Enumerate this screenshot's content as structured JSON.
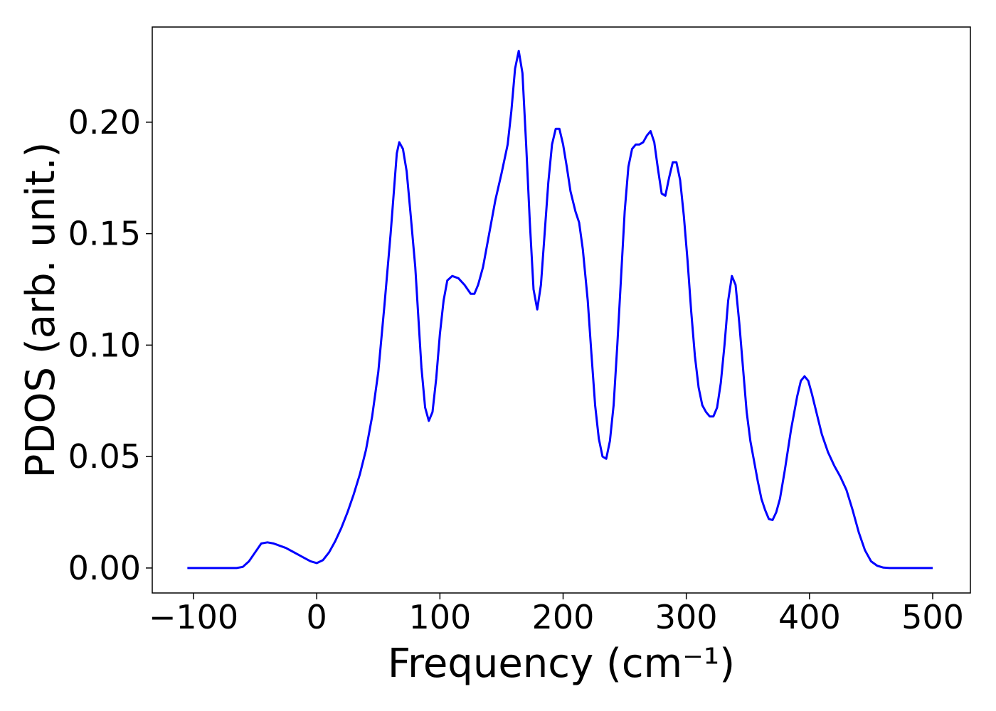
{
  "chart_data": {
    "type": "line",
    "xlabel": "Frequency (cm⁻¹)",
    "ylabel": "PDOS (arb. unit.)",
    "xlim": [
      -133.5,
      530.6
    ],
    "ylim": [
      -0.0112,
      0.2427
    ],
    "xticks": [
      {
        "value": -100,
        "label": "−100"
      },
      0,
      100,
      200,
      300,
      400,
      500
    ],
    "yticks": [
      {
        "value": 0,
        "label": "0.00"
      },
      {
        "value": 0.05,
        "label": "0.05"
      },
      {
        "value": 0.1,
        "label": "0.10"
      },
      {
        "value": 0.15,
        "label": "0.15"
      },
      {
        "value": 0.2,
        "label": "0.20"
      }
    ],
    "grid": false,
    "series": [
      {
        "color": "#0000ff",
        "x": [
          -105,
          -100,
          -90,
          -80,
          -70,
          -65,
          -60,
          -55,
          -50,
          -45,
          -40,
          -35,
          -30,
          -25,
          -20,
          -15,
          -10,
          -5,
          0,
          5,
          10,
          15,
          20,
          25,
          30,
          35,
          40,
          45,
          50,
          55,
          60,
          65,
          67,
          70,
          73,
          76,
          80,
          85,
          88,
          91,
          94,
          97,
          100,
          103,
          106,
          110,
          115,
          120,
          125,
          128,
          131,
          135,
          140,
          145,
          150,
          155,
          158,
          161,
          164,
          167,
          170,
          173,
          176,
          179,
          182,
          185,
          188,
          191,
          194,
          197,
          200,
          203,
          206,
          210,
          213,
          216,
          220,
          223,
          226,
          229,
          232,
          235,
          238,
          241,
          244,
          247,
          250,
          253,
          256,
          259,
          262,
          265,
          268,
          271,
          274,
          277,
          280,
          283,
          286,
          289,
          292,
          295,
          298,
          301,
          304,
          307,
          310,
          313,
          316,
          319,
          322,
          325,
          328,
          331,
          334,
          337,
          340,
          343,
          346,
          349,
          352,
          355,
          358,
          361,
          364,
          367,
          370,
          373,
          376,
          380,
          385,
          390,
          393,
          396,
          399,
          402,
          406,
          410,
          415,
          420,
          425,
          430,
          435,
          440,
          445,
          450,
          455,
          460,
          465,
          470,
          480,
          490,
          500
        ],
        "values": [
          0,
          0,
          0,
          0,
          0,
          0,
          0.0005,
          0.003,
          0.007,
          0.011,
          0.0115,
          0.011,
          0.01,
          0.009,
          0.0075,
          0.006,
          0.0045,
          0.003,
          0.0022,
          0.0035,
          0.007,
          0.012,
          0.018,
          0.025,
          0.033,
          0.042,
          0.053,
          0.068,
          0.088,
          0.118,
          0.15,
          0.186,
          0.191,
          0.188,
          0.178,
          0.16,
          0.135,
          0.09,
          0.072,
          0.066,
          0.07,
          0.085,
          0.105,
          0.12,
          0.129,
          0.131,
          0.13,
          0.127,
          0.123,
          0.123,
          0.127,
          0.135,
          0.15,
          0.165,
          0.177,
          0.19,
          0.205,
          0.224,
          0.232,
          0.222,
          0.19,
          0.155,
          0.125,
          0.116,
          0.127,
          0.15,
          0.173,
          0.19,
          0.197,
          0.197,
          0.19,
          0.18,
          0.169,
          0.16,
          0.155,
          0.143,
          0.12,
          0.096,
          0.073,
          0.058,
          0.05,
          0.049,
          0.057,
          0.073,
          0.1,
          0.13,
          0.16,
          0.18,
          0.188,
          0.19,
          0.19,
          0.191,
          0.194,
          0.196,
          0.191,
          0.179,
          0.168,
          0.167,
          0.175,
          0.182,
          0.182,
          0.174,
          0.158,
          0.138,
          0.115,
          0.095,
          0.081,
          0.073,
          0.07,
          0.068,
          0.068,
          0.072,
          0.083,
          0.1,
          0.12,
          0.131,
          0.127,
          0.11,
          0.09,
          0.07,
          0.057,
          0.048,
          0.039,
          0.031,
          0.026,
          0.022,
          0.0215,
          0.025,
          0.031,
          0.044,
          0.062,
          0.077,
          0.084,
          0.086,
          0.084,
          0.078,
          0.069,
          0.06,
          0.052,
          0.046,
          0.041,
          0.035,
          0.026,
          0.016,
          0.008,
          0.003,
          0.001,
          0.0002,
          0,
          0,
          0,
          0,
          0
        ]
      }
    ]
  }
}
